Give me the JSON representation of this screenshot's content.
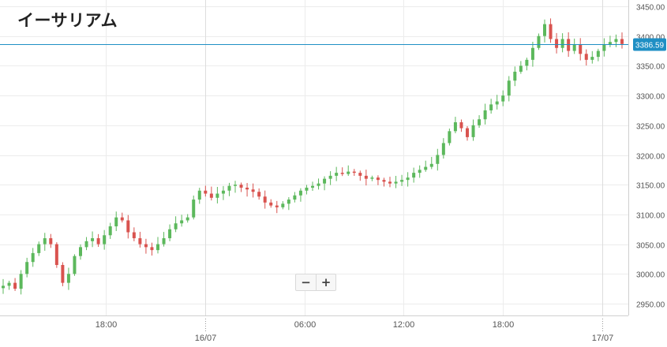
{
  "header": {
    "title": "イーサリアム"
  },
  "controls": {
    "zoom_out_label": "−",
    "zoom_in_label": "+"
  },
  "colors": {
    "up": "#5cb85c",
    "down": "#d9534f",
    "price_line": "#1f8fc4",
    "badge": "#1f8fc4",
    "grid": "#ececec"
  },
  "chart_data": {
    "type": "candlestick",
    "title": "イーサリアム",
    "y_axis": {
      "position": "right",
      "min": 2930,
      "max": 3460,
      "ticks": [
        "2950.00",
        "3000.00",
        "3050.00",
        "3100.00",
        "3150.00",
        "3200.00",
        "3250.00",
        "3300.00",
        "3350.00",
        "3400.00",
        "3450.00"
      ]
    },
    "x_axis": {
      "minor_ticks": [
        {
          "label": "18:00",
          "hour": 18
        },
        {
          "label": "06:00",
          "hour": 30
        },
        {
          "label": "12:00",
          "hour": 36
        },
        {
          "label": "18:00",
          "hour": 42
        }
      ],
      "day_ticks": [
        {
          "label": "16/07",
          "hour": 24
        },
        {
          "label": "17/07",
          "hour": 48
        }
      ]
    },
    "last_price": 3386.59,
    "last_price_label": "3386.59",
    "grid": true,
    "close_series": [
      2980,
      2985,
      2975,
      3000,
      3020,
      3035,
      3050,
      3060,
      3050,
      3015,
      2985,
      3000,
      3030,
      3045,
      3055,
      3060,
      3050,
      3065,
      3080,
      3095,
      3090,
      3070,
      3060,
      3050,
      3045,
      3040,
      3050,
      3060,
      3075,
      3085,
      3090,
      3095,
      3125,
      3140,
      3135,
      3128,
      3135,
      3140,
      3148,
      3150,
      3145,
      3142,
      3138,
      3130,
      3120,
      3115,
      3112,
      3118,
      3125,
      3132,
      3140,
      3145,
      3148,
      3152,
      3160,
      3165,
      3170,
      3168,
      3172,
      3170,
      3165,
      3160,
      3162,
      3158,
      3155,
      3152,
      3155,
      3158,
      3162,
      3170,
      3175,
      3180,
      3185,
      3200,
      3220,
      3240,
      3255,
      3245,
      3230,
      3250,
      3260,
      3275,
      3285,
      3290,
      3300,
      3325,
      3340,
      3350,
      3360,
      3380,
      3400,
      3420,
      3395,
      3380,
      3395,
      3375,
      3385,
      3370,
      3360,
      3365,
      3375,
      3385,
      3390,
      3395,
      3386.59
    ]
  }
}
